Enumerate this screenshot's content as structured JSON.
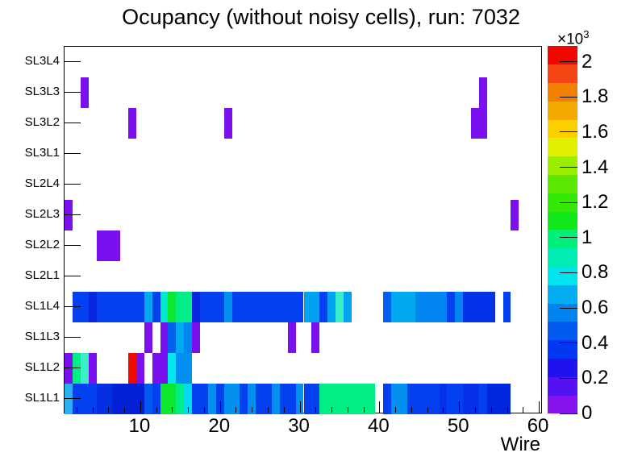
{
  "chart_data": {
    "type": "heatmap",
    "title": "Ocupancy (without noisy cells), run: 7032",
    "xlabel": "Wire",
    "background": "#ffffff",
    "x_min": 0.5,
    "x_max": 60.5,
    "x_major_ticks": [
      10,
      20,
      30,
      40,
      50,
      60
    ],
    "x_minor_tick_step": 2,
    "rows_top_to_bottom": [
      "SL3L4",
      "SL3L3",
      "SL3L2",
      "SL3L1",
      "SL2L4",
      "SL2L3",
      "SL2L2",
      "SL2L1",
      "SL1L4",
      "SL1L3",
      "SL1L2",
      "SL1L1"
    ],
    "z_axis": {
      "min": 0,
      "max": 2090,
      "ticks": [
        0,
        0.2,
        0.4,
        0.6,
        0.8,
        1,
        1.2,
        1.4,
        1.6,
        1.8,
        2
      ],
      "multiplier": "×10",
      "exponent": "3",
      "levels": 20
    },
    "palette_bottom_to_top": [
      "#8812ee",
      "#5412f0",
      "#2012f0",
      "#0238f0",
      "#015af0",
      "#0184f0",
      "#01adf0",
      "#00e4ee",
      "#00ecb2",
      "#00ee7a",
      "#11e81c",
      "#33e806",
      "#5ce800",
      "#9cee00",
      "#e0f000",
      "#fcd000",
      "#f5a800",
      "#f08000",
      "#f54513",
      "#f00800"
    ],
    "cells": [
      {
        "row": "SL3L3",
        "w1": 3,
        "w2": 3,
        "v": 90,
        "c": "#7a10ee"
      },
      {
        "row": "SL3L3",
        "w1": 53,
        "w2": 53,
        "v": 90,
        "c": "#7a10ee"
      },
      {
        "row": "SL3L2",
        "w1": 9,
        "w2": 9,
        "v": 90,
        "c": "#7a10ee"
      },
      {
        "row": "SL3L2",
        "w1": 21,
        "w2": 21,
        "v": 90,
        "c": "#7a10ee"
      },
      {
        "row": "SL3L2",
        "w1": 52,
        "w2": 53,
        "v": 90,
        "c": "#7a10ee"
      },
      {
        "row": "SL2L3",
        "w1": 1,
        "w2": 1,
        "v": 90,
        "c": "#7a10ee"
      },
      {
        "row": "SL2L3",
        "w1": 57,
        "w2": 57,
        "v": 90,
        "c": "#7a10ee"
      },
      {
        "row": "SL2L2",
        "w1": 5,
        "w2": 7,
        "v": 90,
        "c": "#7a10ee"
      },
      {
        "row": "SL1L4",
        "w1": 2,
        "w2": 3,
        "v": 380,
        "c": "#0341f0"
      },
      {
        "row": "SL1L4",
        "w1": 4,
        "w2": 4,
        "v": 270,
        "c": "#0b26e0"
      },
      {
        "row": "SL1L4",
        "w1": 5,
        "w2": 10,
        "v": 380,
        "c": "#0341f0"
      },
      {
        "row": "SL1L4",
        "w1": 11,
        "w2": 11,
        "v": 690,
        "c": "#01a8f0"
      },
      {
        "row": "SL1L4",
        "w1": 12,
        "w2": 12,
        "v": 380,
        "c": "#0341f0"
      },
      {
        "row": "SL1L4",
        "w1": 13,
        "w2": 13,
        "v": 900,
        "c": "#02e8d0"
      },
      {
        "row": "SL1L4",
        "w1": 14,
        "w2": 14,
        "v": 1150,
        "c": "#0be82e"
      },
      {
        "row": "SL1L4",
        "w1": 15,
        "w2": 16,
        "v": 1000,
        "c": "#00ee85"
      },
      {
        "row": "SL1L4",
        "w1": 17,
        "w2": 17,
        "v": 270,
        "c": "#0b26e0"
      },
      {
        "row": "SL1L4",
        "w1": 18,
        "w2": 20,
        "v": 380,
        "c": "#0341f0"
      },
      {
        "row": "SL1L4",
        "w1": 21,
        "w2": 21,
        "v": 590,
        "c": "#0190f0"
      },
      {
        "row": "SL1L4",
        "w1": 22,
        "w2": 30,
        "v": 380,
        "c": "#0341f0"
      },
      {
        "row": "SL1L4",
        "w1": 31,
        "w2": 32,
        "v": 680,
        "c": "#01a2f0"
      },
      {
        "row": "SL1L4",
        "w1": 33,
        "w2": 33,
        "v": 380,
        "c": "#0341f0"
      },
      {
        "row": "SL1L4",
        "w1": 34,
        "w2": 34,
        "v": 680,
        "c": "#01a2f0"
      },
      {
        "row": "SL1L4",
        "w1": 35,
        "w2": 35,
        "v": 900,
        "c": "#3ceec6"
      },
      {
        "row": "SL1L4",
        "w1": 36,
        "w2": 36,
        "v": 680,
        "c": "#01a2f0"
      },
      {
        "row": "SL1L4",
        "w1": 41,
        "w2": 41,
        "v": 470,
        "c": "#0160f0"
      },
      {
        "row": "SL1L4",
        "w1": 42,
        "w2": 44,
        "v": 700,
        "c": "#01aaf0"
      },
      {
        "row": "SL1L4",
        "w1": 45,
        "w2": 48,
        "v": 580,
        "c": "#0185f0"
      },
      {
        "row": "SL1L4",
        "w1": 49,
        "w2": 49,
        "v": 380,
        "c": "#0341f0"
      },
      {
        "row": "SL1L4",
        "w1": 50,
        "w2": 50,
        "v": 580,
        "c": "#0185f0"
      },
      {
        "row": "SL1L4",
        "w1": 51,
        "w2": 54,
        "v": 330,
        "c": "#0332e8"
      },
      {
        "row": "SL1L4",
        "w1": 56,
        "w2": 56,
        "v": 380,
        "c": "#0341f0"
      },
      {
        "row": "SL1L3",
        "w1": 11,
        "w2": 11,
        "v": 90,
        "c": "#7a10ee"
      },
      {
        "row": "SL1L3",
        "w1": 13,
        "w2": 13,
        "v": 90,
        "c": "#7a10ee"
      },
      {
        "row": "SL1L3",
        "w1": 14,
        "w2": 14,
        "v": 480,
        "c": "#0160f0"
      },
      {
        "row": "SL1L3",
        "w1": 15,
        "w2": 15,
        "v": 700,
        "c": "#01aaf0"
      },
      {
        "row": "SL1L3",
        "w1": 16,
        "w2": 16,
        "v": 580,
        "c": "#0185f0"
      },
      {
        "row": "SL1L3",
        "w1": 17,
        "w2": 17,
        "v": 90,
        "c": "#7a10ee"
      },
      {
        "row": "SL1L3",
        "w1": 29,
        "w2": 29,
        "v": 90,
        "c": "#7a10ee"
      },
      {
        "row": "SL1L3",
        "w1": 32,
        "w2": 32,
        "v": 90,
        "c": "#7a10ee"
      },
      {
        "row": "SL1L2",
        "w1": 1,
        "w2": 1,
        "v": 90,
        "c": "#7a10ee"
      },
      {
        "row": "SL1L2",
        "w1": 2,
        "w2": 2,
        "v": 1000,
        "c": "#00ee85"
      },
      {
        "row": "SL1L2",
        "w1": 3,
        "w2": 3,
        "v": 900,
        "c": "#3ceec6"
      },
      {
        "row": "SL1L2",
        "w1": 4,
        "w2": 4,
        "v": 90,
        "c": "#7a10ee"
      },
      {
        "row": "SL1L2",
        "w1": 9,
        "w2": 9,
        "v": 2060,
        "c": "#f00a00"
      },
      {
        "row": "SL1L2",
        "w1": 10,
        "w2": 10,
        "v": 90,
        "c": "#7a10ee"
      },
      {
        "row": "SL1L2",
        "w1": 12,
        "w2": 13,
        "v": 90,
        "c": "#7a10ee"
      },
      {
        "row": "SL1L2",
        "w1": 14,
        "w2": 14,
        "v": 800,
        "c": "#02e8ee"
      },
      {
        "row": "SL1L2",
        "w1": 15,
        "w2": 16,
        "v": 590,
        "c": "#0190f0"
      },
      {
        "row": "SL1L1",
        "w1": 1,
        "w2": 1,
        "v": 700,
        "c": "#29b0f0"
      },
      {
        "row": "SL1L1",
        "w1": 2,
        "w2": 4,
        "v": 380,
        "c": "#0341f0"
      },
      {
        "row": "SL1L1",
        "w1": 5,
        "w2": 6,
        "v": 330,
        "c": "#0330e0"
      },
      {
        "row": "SL1L1",
        "w1": 7,
        "w2": 10,
        "v": 250,
        "c": "#0320d4"
      },
      {
        "row": "SL1L1",
        "w1": 11,
        "w2": 11,
        "v": 470,
        "c": "#0158f0"
      },
      {
        "row": "SL1L1",
        "w1": 12,
        "w2": 12,
        "v": 380,
        "c": "#0341f0"
      },
      {
        "row": "SL1L1",
        "w1": 13,
        "w2": 14,
        "v": 1150,
        "c": "#0be82e"
      },
      {
        "row": "SL1L1",
        "w1": 15,
        "w2": 15,
        "v": 1000,
        "c": "#00ee85"
      },
      {
        "row": "SL1L1",
        "w1": 16,
        "w2": 16,
        "v": 780,
        "c": "#02d8f0"
      },
      {
        "row": "SL1L1",
        "w1": 17,
        "w2": 18,
        "v": 380,
        "c": "#0341f0"
      },
      {
        "row": "SL1L1",
        "w1": 19,
        "w2": 19,
        "v": 590,
        "c": "#0190f0"
      },
      {
        "row": "SL1L1",
        "w1": 20,
        "w2": 20,
        "v": 380,
        "c": "#0341f0"
      },
      {
        "row": "SL1L1",
        "w1": 21,
        "w2": 22,
        "v": 590,
        "c": "#0190f0"
      },
      {
        "row": "SL1L1",
        "w1": 23,
        "w2": 23,
        "v": 380,
        "c": "#0341f0"
      },
      {
        "row": "SL1L1",
        "w1": 24,
        "w2": 24,
        "v": 590,
        "c": "#0190f0"
      },
      {
        "row": "SL1L1",
        "w1": 25,
        "w2": 26,
        "v": 380,
        "c": "#0341f0"
      },
      {
        "row": "SL1L1",
        "w1": 27,
        "w2": 27,
        "v": 590,
        "c": "#0190f0"
      },
      {
        "row": "SL1L1",
        "w1": 28,
        "w2": 29,
        "v": 380,
        "c": "#0341f0"
      },
      {
        "row": "SL1L1",
        "w1": 30,
        "w2": 30,
        "v": 590,
        "c": "#0190f0"
      },
      {
        "row": "SL1L1",
        "w1": 31,
        "w2": 32,
        "v": 380,
        "c": "#0341f0"
      },
      {
        "row": "SL1L1",
        "w1": 33,
        "w2": 39,
        "v": 1000,
        "c": "#00ee85"
      },
      {
        "row": "SL1L1",
        "w1": 41,
        "w2": 41,
        "v": 380,
        "c": "#0341f0"
      },
      {
        "row": "SL1L1",
        "w1": 42,
        "w2": 43,
        "v": 590,
        "c": "#0190f0"
      },
      {
        "row": "SL1L1",
        "w1": 44,
        "w2": 47,
        "v": 380,
        "c": "#0341f0"
      },
      {
        "row": "SL1L1",
        "w1": 48,
        "w2": 48,
        "v": 330,
        "c": "#0330e8"
      },
      {
        "row": "SL1L1",
        "w1": 49,
        "w2": 50,
        "v": 380,
        "c": "#0341f0"
      },
      {
        "row": "SL1L1",
        "w1": 51,
        "w2": 52,
        "v": 330,
        "c": "#0330e8"
      },
      {
        "row": "SL1L1",
        "w1": 53,
        "w2": 53,
        "v": 380,
        "c": "#0341f0"
      },
      {
        "row": "SL1L1",
        "w1": 54,
        "w2": 56,
        "v": 280,
        "c": "#0226dd"
      }
    ]
  }
}
